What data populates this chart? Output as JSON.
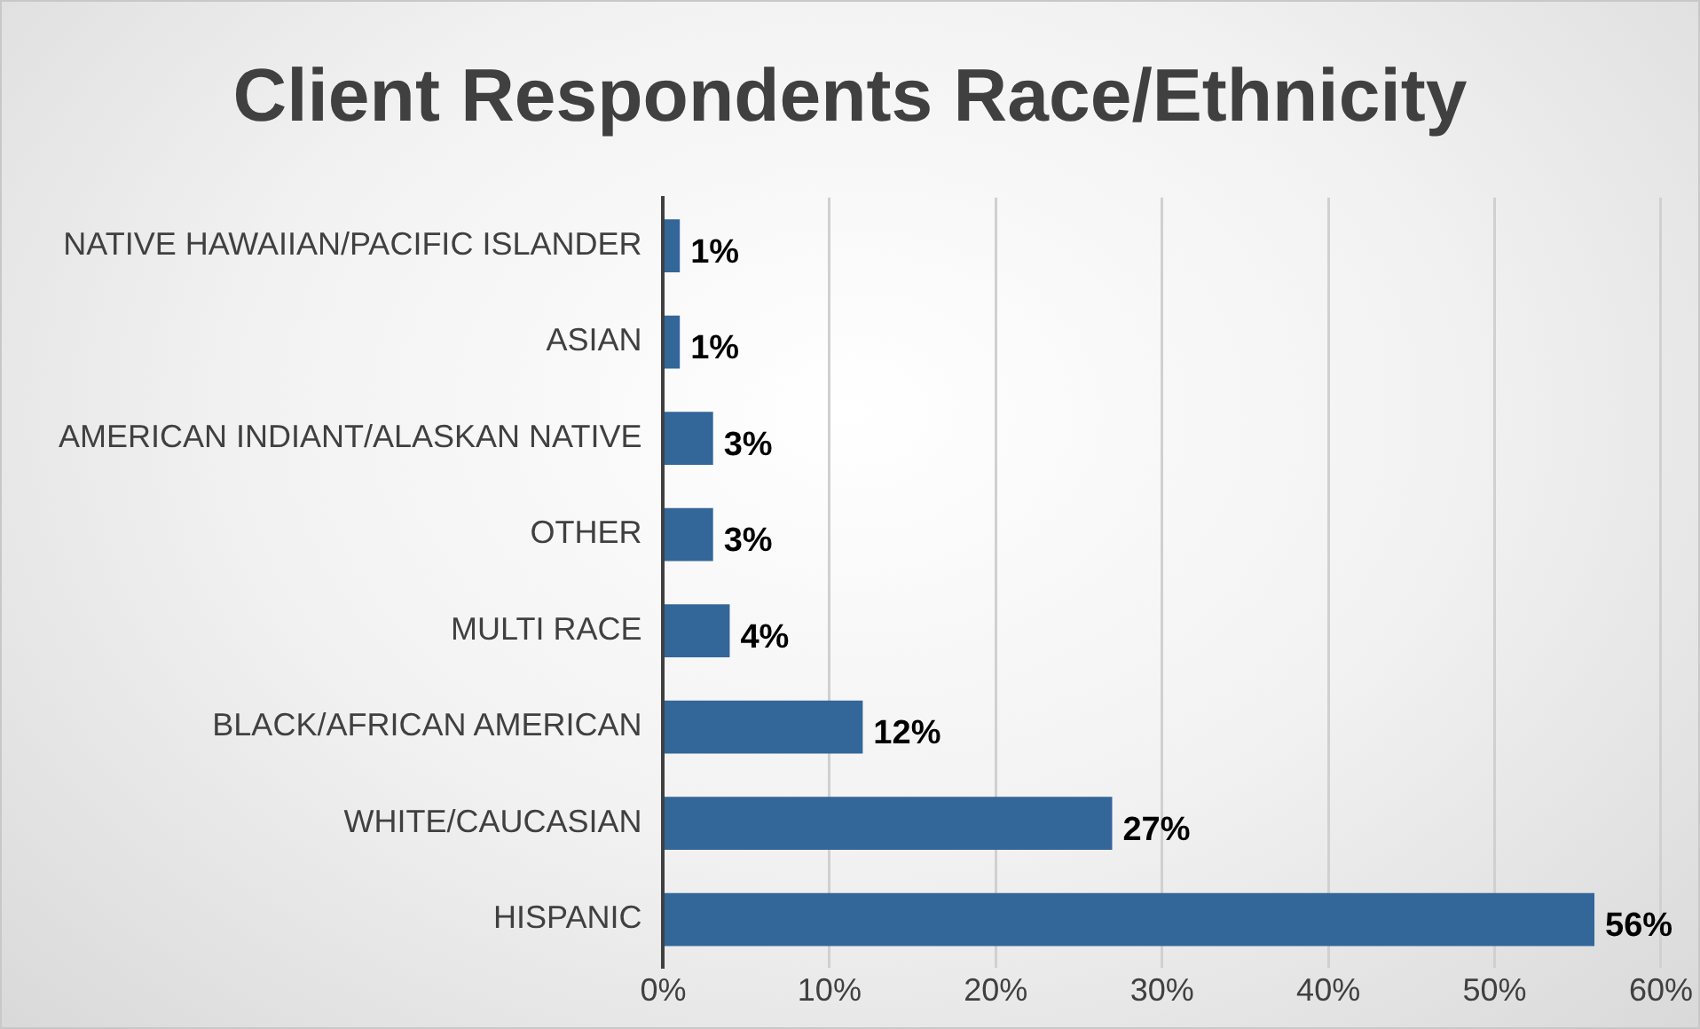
{
  "chart_data": {
    "type": "bar",
    "orientation": "horizontal",
    "title": "Client Respondents Race/Ethnicity",
    "categories": [
      "NATIVE HAWAIIAN/PACIFIC ISLANDER",
      "ASIAN",
      "AMERICAN INDIANT/ALASKAN NATIVE",
      "OTHER",
      "MULTI RACE",
      "BLACK/AFRICAN AMERICAN",
      "WHITE/CAUCASIAN",
      "HISPANIC"
    ],
    "values": [
      1,
      1,
      3,
      3,
      4,
      12,
      27,
      56
    ],
    "value_labels": [
      "1%",
      "1%",
      "3%",
      "3%",
      "4%",
      "12%",
      "27%",
      "56%"
    ],
    "color": "#336699",
    "xlim": [
      0,
      60
    ],
    "xticks": [
      {
        "value": 0,
        "label": "0%"
      },
      {
        "value": 10,
        "label": "10%"
      },
      {
        "value": 20,
        "label": "20%"
      },
      {
        "value": 30,
        "label": "30%"
      },
      {
        "value": 40,
        "label": "40%"
      },
      {
        "value": 50,
        "label": "50%"
      },
      {
        "value": 60,
        "label": "60%"
      }
    ],
    "grid": "x"
  }
}
